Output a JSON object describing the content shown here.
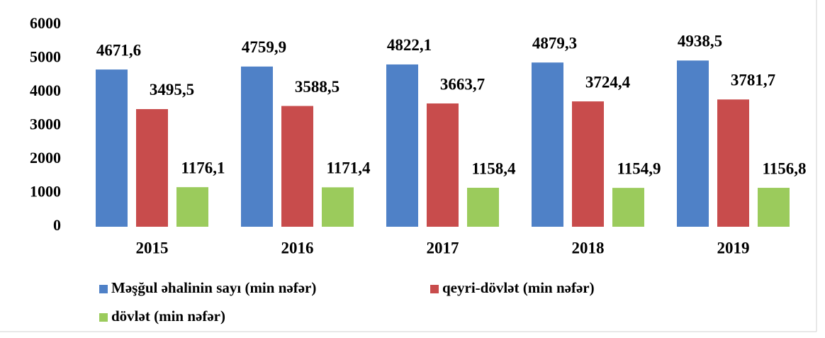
{
  "chart_data": {
    "type": "bar",
    "categories": [
      "2015",
      "2016",
      "2017",
      "2018",
      "2019"
    ],
    "series": [
      {
        "name": "Məşğul əhalinin sayı (min nəfər)",
        "color": "#4f81c7",
        "values": [
          4671.6,
          4759.9,
          4822.1,
          4879.3,
          4938.5
        ],
        "value_labels": [
          "4671,6",
          "4759,9",
          "4822,1",
          "4879,3",
          "4938,5"
        ]
      },
      {
        "name": "qeyri-dövlət (min nəfər)",
        "color": "#c84c4c",
        "values": [
          3495.5,
          3588.5,
          3663.7,
          3724.4,
          3781.7
        ],
        "value_labels": [
          "3495,5",
          "3588,5",
          "3663,7",
          "3724,4",
          "3781,7"
        ]
      },
      {
        "name": "dövlət (min nəfər)",
        "color": "#9bcb5c",
        "values": [
          1176.1,
          1171.4,
          1158.4,
          1154.9,
          1156.8
        ],
        "value_labels": [
          "1176,1",
          "1171,4",
          "1158,4",
          "1154,9",
          "1156,8"
        ]
      }
    ],
    "ylim": [
      0,
      6000
    ],
    "yticks": [
      0,
      1000,
      2000,
      3000,
      4000,
      5000,
      6000
    ],
    "grid": false,
    "legend": "bottom"
  }
}
